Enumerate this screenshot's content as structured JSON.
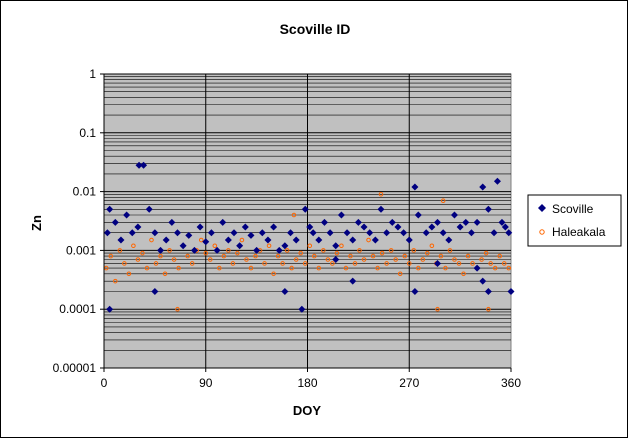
{
  "chart_data": {
    "type": "scatter",
    "title": "Scoville ID",
    "xlabel": "DOY",
    "ylabel": "Zn",
    "xlim": [
      0,
      360
    ],
    "x_ticks": [
      0,
      90,
      180,
      270,
      360
    ],
    "x_tick_labels": [
      "0",
      "90",
      "180",
      "270",
      "360"
    ],
    "ylim": [
      1e-05,
      1
    ],
    "y_scale": "log",
    "y_ticks": [
      1e-05,
      0.0001,
      0.001,
      0.01,
      0.1,
      1
    ],
    "y_tick_labels": [
      "0.00001",
      "0.0001",
      "0.001",
      "0.01",
      "0.1",
      "1"
    ],
    "grid": true,
    "plot_background": "#c0c0c0",
    "legend_position": "right",
    "series": [
      {
        "name": "Scoville",
        "marker": "diamond",
        "color": "#000080",
        "x": [
          3,
          5,
          10,
          15,
          20,
          25,
          30,
          35,
          40,
          45,
          50,
          55,
          60,
          65,
          70,
          75,
          80,
          85,
          90,
          95,
          100,
          105,
          110,
          115,
          120,
          125,
          130,
          135,
          140,
          145,
          150,
          155,
          160,
          165,
          170,
          175,
          178,
          182,
          185,
          190,
          195,
          200,
          205,
          210,
          215,
          220,
          225,
          230,
          235,
          240,
          245,
          250,
          255,
          260,
          265,
          270,
          275,
          278,
          285,
          290,
          295,
          300,
          305,
          310,
          315,
          320,
          325,
          330,
          335,
          340,
          345,
          348,
          352,
          355,
          358,
          31,
          45,
          160,
          275,
          335,
          340,
          360,
          205,
          5,
          220,
          295,
          330
        ],
        "y": [
          0.002,
          0.0001,
          0.003,
          0.0015,
          0.004,
          0.002,
          0.0025,
          0.028,
          0.005,
          0.002,
          0.001,
          0.0015,
          0.003,
          0.002,
          0.0012,
          0.0018,
          0.001,
          0.0025,
          0.0014,
          0.002,
          0.001,
          0.003,
          0.0015,
          0.002,
          0.0012,
          0.0025,
          0.0018,
          0.001,
          0.002,
          0.0015,
          0.0025,
          0.001,
          0.0012,
          0.002,
          0.0015,
          0.0001,
          0.005,
          0.0025,
          0.002,
          0.0015,
          0.003,
          0.002,
          0.0012,
          0.004,
          0.002,
          0.0015,
          0.003,
          0.0025,
          0.002,
          0.0015,
          0.005,
          0.002,
          0.003,
          0.0025,
          0.002,
          0.0015,
          0.012,
          0.004,
          0.002,
          0.0025,
          0.003,
          0.002,
          0.0015,
          0.004,
          0.0025,
          0.003,
          0.002,
          0.003,
          0.012,
          0.005,
          0.002,
          0.015,
          0.003,
          0.0025,
          0.002,
          0.028,
          0.0002,
          0.0002,
          0.0002,
          0.0003,
          0.0002,
          0.0002,
          0.0007,
          0.005,
          0.0003,
          0.0006,
          0.0005
        ]
      },
      {
        "name": "Haleakala",
        "marker": "circle",
        "color": "#ff6600",
        "x": [
          2,
          6,
          10,
          14,
          18,
          22,
          26,
          30,
          34,
          38,
          42,
          46,
          50,
          54,
          58,
          62,
          66,
          70,
          74,
          78,
          82,
          86,
          90,
          94,
          98,
          102,
          106,
          110,
          114,
          118,
          122,
          126,
          130,
          134,
          138,
          142,
          146,
          150,
          154,
          158,
          162,
          166,
          170,
          174,
          178,
          182,
          186,
          190,
          194,
          198,
          202,
          206,
          210,
          214,
          218,
          222,
          226,
          230,
          234,
          238,
          242,
          246,
          250,
          254,
          258,
          262,
          266,
          270,
          274,
          278,
          282,
          286,
          290,
          294,
          298,
          302,
          306,
          310,
          314,
          318,
          322,
          326,
          330,
          334,
          338,
          342,
          346,
          350,
          354,
          358,
          245,
          300,
          168,
          65,
          295,
          340
        ],
        "y": [
          0.0005,
          0.0008,
          0.0003,
          0.001,
          0.0006,
          0.0004,
          0.0012,
          0.0007,
          0.0009,
          0.0005,
          0.0015,
          0.0006,
          0.0008,
          0.0004,
          0.001,
          0.0007,
          0.0005,
          0.0012,
          0.0008,
          0.0006,
          0.001,
          0.0015,
          0.0009,
          0.0007,
          0.0012,
          0.0005,
          0.0008,
          0.001,
          0.0006,
          0.0009,
          0.0015,
          0.0007,
          0.0005,
          0.0008,
          0.001,
          0.0006,
          0.0012,
          0.0004,
          0.0008,
          0.0006,
          0.001,
          0.0005,
          0.0007,
          0.0009,
          0.0006,
          0.0012,
          0.0008,
          0.0005,
          0.001,
          0.0007,
          0.0006,
          0.0009,
          0.0012,
          0.0005,
          0.0008,
          0.0006,
          0.001,
          0.0007,
          0.0015,
          0.0008,
          0.0005,
          0.0009,
          0.0006,
          0.001,
          0.0007,
          0.0004,
          0.0008,
          0.0006,
          0.001,
          0.0005,
          0.0007,
          0.0009,
          0.0012,
          0.0006,
          0.0008,
          0.0005,
          0.001,
          0.0007,
          0.0006,
          0.0004,
          0.0008,
          0.0006,
          0.0005,
          0.0007,
          0.0009,
          0.0006,
          0.0005,
          0.0008,
          0.0006,
          0.0005,
          0.009,
          0.007,
          0.004,
          0.0001,
          0.0001,
          0.0001
        ]
      }
    ]
  }
}
